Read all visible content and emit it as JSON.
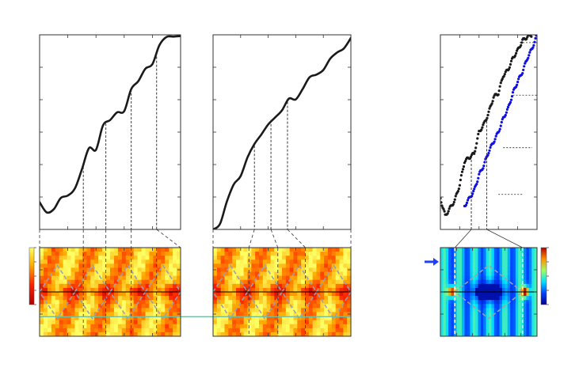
{
  "figure": {
    "background": "#ffffff",
    "axis_color": "#333333",
    "colors": {
      "curve_black": "#1a1a1a",
      "curve_blue": "#1010e0",
      "connector": "#333333",
      "dashed_overlay": "#9aa0b4",
      "horizontal_line": "#000000",
      "green_line": "#6fbf9f",
      "arrow": "#1f3fff"
    }
  },
  "chart_data": [
    {
      "type": "line",
      "panel": "left-top",
      "series": [
        {
          "x": [
            0.0,
            0.05,
            0.1,
            0.15,
            0.2,
            0.25,
            0.3,
            0.35,
            0.4,
            0.45,
            0.5,
            0.55,
            0.6,
            0.65,
            0.7,
            0.75,
            0.8,
            0.85,
            0.9,
            0.95,
            1.0
          ],
          "y": [
            0.14,
            0.1,
            0.1,
            0.15,
            0.18,
            0.22,
            0.3,
            0.41,
            0.42,
            0.54,
            0.55,
            0.6,
            0.62,
            0.72,
            0.75,
            0.83,
            0.86,
            0.94,
            0.98,
            1.0,
            1.0
          ]
        }
      ],
      "markers_x": [
        0.31,
        0.47,
        0.65,
        0.83
      ],
      "xlim": [
        0,
        1
      ],
      "ylim": [
        0,
        1
      ],
      "xticks": 5,
      "yticks": 6
    },
    {
      "type": "line",
      "panel": "middle-top",
      "series": [
        {
          "x": [
            0.0,
            0.05,
            0.1,
            0.15,
            0.2,
            0.25,
            0.3,
            0.35,
            0.4,
            0.45,
            0.5,
            0.55,
            0.6,
            0.65,
            0.7,
            0.75,
            0.8,
            0.85,
            0.9,
            0.95,
            1.0
          ],
          "y": [
            0.0,
            0.04,
            0.14,
            0.22,
            0.28,
            0.38,
            0.43,
            0.48,
            0.55,
            0.58,
            0.6,
            0.67,
            0.68,
            0.72,
            0.77,
            0.8,
            0.83,
            0.87,
            0.9,
            0.94,
            0.99
          ]
        }
      ],
      "markers_x": [
        0.3,
        0.42,
        0.54
      ],
      "xlim": [
        0,
        1
      ],
      "ylim": [
        0,
        1
      ],
      "xticks": 5,
      "yticks": 6
    },
    {
      "type": "scatter",
      "panel": "right-top",
      "series": [
        {
          "color": "black",
          "x": [
            0.0,
            0.05,
            0.1,
            0.15,
            0.2,
            0.25,
            0.3,
            0.35,
            0.4,
            0.45,
            0.5,
            0.55,
            0.6,
            0.65,
            0.7,
            0.75,
            0.8,
            0.85,
            0.9,
            0.95
          ],
          "y": [
            0.16,
            0.07,
            0.11,
            0.15,
            0.23,
            0.35,
            0.37,
            0.39,
            0.5,
            0.54,
            0.6,
            0.68,
            0.7,
            0.79,
            0.82,
            0.88,
            0.92,
            0.97,
            0.99,
            1.0
          ]
        },
        {
          "color": "blue",
          "x": [
            0.25,
            0.3,
            0.35,
            0.4,
            0.45,
            0.5,
            0.55,
            0.6,
            0.65,
            0.7,
            0.75,
            0.8,
            0.85,
            0.9,
            0.95,
            1.0
          ],
          "y": [
            0.12,
            0.16,
            0.2,
            0.28,
            0.33,
            0.4,
            0.45,
            0.5,
            0.57,
            0.62,
            0.7,
            0.76,
            0.81,
            0.88,
            0.93,
            1.0
          ]
        }
      ],
      "markers_x": [
        0.32,
        0.48
      ],
      "xlim": [
        0,
        1
      ],
      "ylim": [
        0,
        1
      ],
      "xticks": 5,
      "yticks": 6
    },
    {
      "type": "heatmap",
      "panel": "left-bottom",
      "colormap": "hot-yellow",
      "hline_y": 0.5,
      "green_line_y": 0.78,
      "vlines_x": [
        0.31,
        0.47,
        0.65,
        0.83
      ],
      "xticks": 5,
      "yticks": 4
    },
    {
      "type": "heatmap",
      "panel": "middle-bottom",
      "colormap": "hot-yellow",
      "hline_y": 0.5,
      "green_line_y": 0.78,
      "vlines_x": [
        0.26,
        0.47,
        0.67
      ],
      "xticks": 5,
      "yticks": 4
    },
    {
      "type": "heatmap",
      "panel": "right-bottom",
      "colormap": "jet",
      "hline_y": 0.5,
      "vlines_x": [
        0.15,
        0.85
      ],
      "arrow_y": 0.16,
      "xticks": 6,
      "yticks": 4
    }
  ]
}
